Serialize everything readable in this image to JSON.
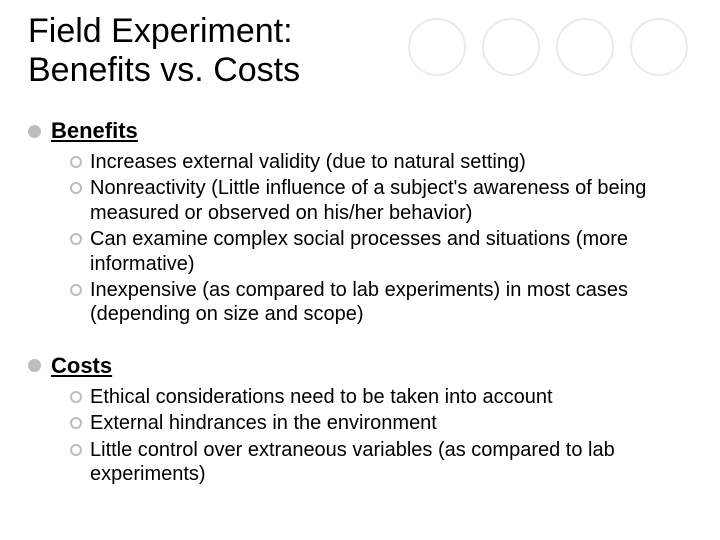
{
  "title_line1": "Field Experiment:",
  "title_line2": "Benefits vs. Costs",
  "decorative_circle_count": 4,
  "colors": {
    "bullet_fill": "#bdbdbd",
    "bullet_ring": "#bdbdbd",
    "circle_border": "#eaeaea",
    "text": "#000000",
    "background": "#ffffff"
  },
  "sections": [
    {
      "heading": "Benefits",
      "items": [
        "Increases external validity (due to natural setting)",
        "Nonreactivity (Little influence of a subject's awareness of being measured or observed on his/her behavior)",
        "Can examine complex social processes and situations (more informative)",
        "Inexpensive (as compared to lab experiments) in most cases (depending on size and scope)"
      ]
    },
    {
      "heading": "Costs",
      "items": [
        "Ethical considerations need to be taken into account",
        "External hindrances in the environment",
        "Little control over extraneous variables (as compared to lab experiments)"
      ]
    }
  ]
}
